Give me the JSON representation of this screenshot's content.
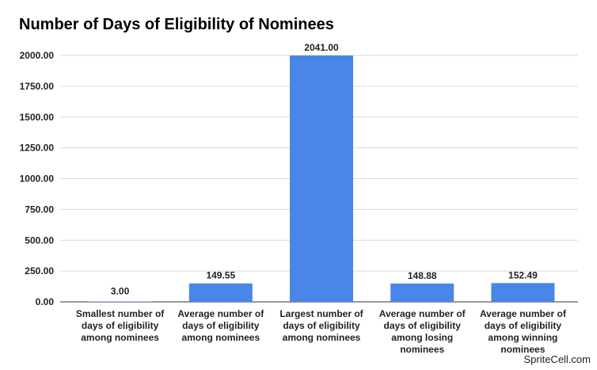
{
  "chart_data": {
    "type": "bar",
    "title": "Number of Days of Eligibility of Nominees",
    "xlabel": "",
    "ylabel": "",
    "ylim": [
      0,
      2000
    ],
    "yticks": [
      "0.00",
      "250.00",
      "500.00",
      "750.00",
      "1000.00",
      "1250.00",
      "1500.00",
      "1750.00",
      "2000.00"
    ],
    "ytick_values": [
      0,
      250,
      500,
      750,
      1000,
      1250,
      1500,
      1750,
      2000
    ],
    "categories": [
      [
        "Smallest number of",
        "days of eligibility",
        "among nominees"
      ],
      [
        "Average number of",
        "days of eligibility",
        "among nominees"
      ],
      [
        "Largest number of",
        "days of eligibility",
        "among nominees"
      ],
      [
        "Average number of",
        "days of eligibility",
        "among losing",
        "nominees"
      ],
      [
        "Average number of",
        "days of eligibility",
        "among winning",
        "nominees"
      ]
    ],
    "values": [
      3.0,
      149.55,
      2041.0,
      148.88,
      152.49
    ],
    "data_labels": [
      "3.00",
      "149.55",
      "2041.00",
      "148.88",
      "152.49"
    ],
    "grid": true,
    "bar_color": "#4a86e8",
    "gridline_color": "#d9d9d9"
  },
  "watermark": "SpriteCell.com"
}
